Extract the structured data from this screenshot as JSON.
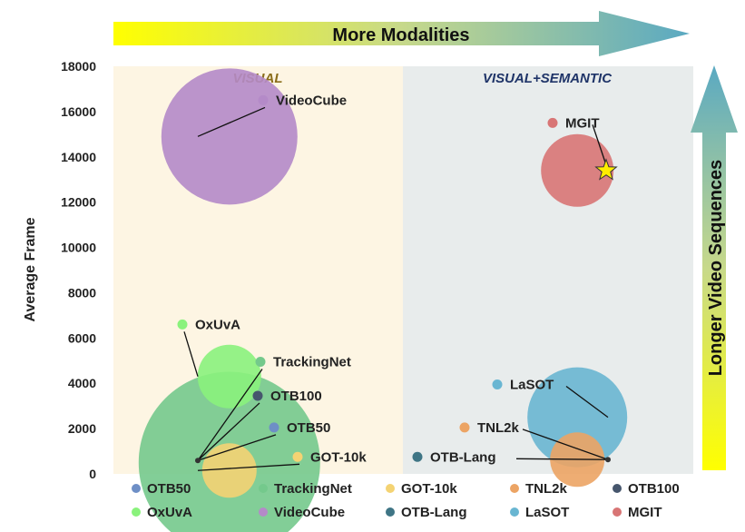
{
  "chart_data": {
    "type": "scatter",
    "ylabel": "Average Frame",
    "ylim": [
      0,
      18000
    ],
    "yticks": [
      0,
      2000,
      4000,
      6000,
      8000,
      10000,
      12000,
      14000,
      16000,
      18000
    ],
    "regions": [
      {
        "key": "visual",
        "label": "VISUAL",
        "color": "#fdf5e3",
        "label_color": "#8a6d1a"
      },
      {
        "key": "semantic",
        "label": "VISUAL+SEMANTIC",
        "color": "#e8ecec",
        "label_color": "#1f3468"
      }
    ],
    "banner_top": "More Modalities",
    "banner_right": "Longer Video Sequences",
    "series": [
      {
        "name": "OTB50",
        "color": "#6e8fc6",
        "region": "visual",
        "x": 0.2,
        "y": 590,
        "size": 0
      },
      {
        "name": "OxUvA",
        "color": "#8af27c",
        "region": "visual",
        "x": 0.2,
        "y": 4300,
        "size": 0.35
      },
      {
        "name": "TrackingNet",
        "color": "#74c98c",
        "region": "visual",
        "x": 0.2,
        "y": 500,
        "size": 1.0
      },
      {
        "name": "VideoCube",
        "color": "#b48ac8",
        "region": "visual",
        "x": 0.2,
        "y": 14900,
        "size": 0.75
      },
      {
        "name": "GOT-10k",
        "color": "#f4d373",
        "region": "visual",
        "x": 0.2,
        "y": 150,
        "size": 0.3
      },
      {
        "name": "OTB-Lang",
        "color": "#3f7585",
        "region": "semantic",
        "x": 0.8,
        "y": 600,
        "size": 0
      },
      {
        "name": "TNL2k",
        "color": "#eca464",
        "region": "semantic",
        "x": 0.8,
        "y": 630,
        "size": 0.3
      },
      {
        "name": "LaSOT",
        "color": "#69b6d2",
        "region": "semantic",
        "x": 0.8,
        "y": 2500,
        "size": 0.55
      },
      {
        "name": "OTB100",
        "color": "#46566d",
        "region": "visual",
        "x": 0.2,
        "y": 590,
        "size": 0
      },
      {
        "name": "MGIT",
        "color": "#d87575",
        "region": "semantic",
        "x": 0.8,
        "y": 13400,
        "size": 0.4
      }
    ],
    "legend_order": [
      "OTB50",
      "TrackingNet",
      "GOT-10k",
      "TNL2k",
      "OTB100",
      "OxUvA",
      "VideoCube",
      "OTB-Lang",
      "LaSOT",
      "MGIT"
    ]
  }
}
